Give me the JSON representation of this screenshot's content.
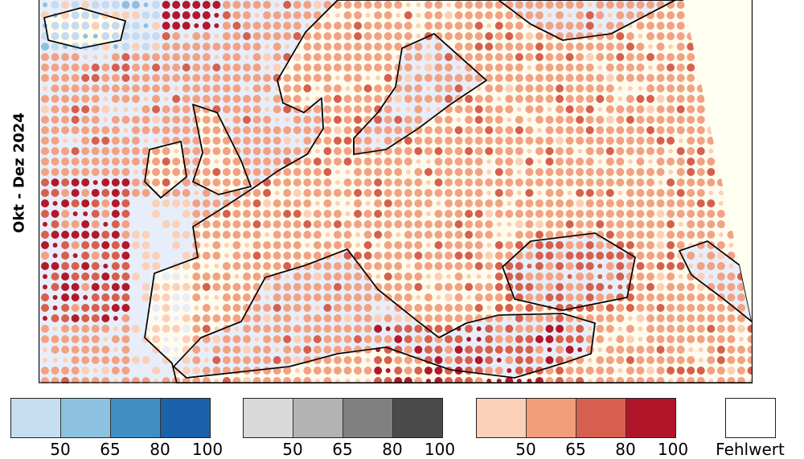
{
  "period_label": "Okt - Dez 2024",
  "map": {
    "colors": {
      "sea": "#e8eef9",
      "land": "#fffcee",
      "outside": "#fffff2",
      "coast": "#000000"
    },
    "dot_palette": {
      "blue_light": "#c6dbef",
      "blue_mid": "#8fbfdf",
      "peach": "#fbd0b9",
      "salmon": "#f2a284",
      "red": "#d6604d",
      "dark_red": "#b2182b"
    }
  },
  "legend": {
    "groups": [
      {
        "colors": [
          "#c6dff0",
          "#8dc1e0",
          "#3f8fc4",
          "#1a62aa"
        ],
        "ticks": [
          "50",
          "65",
          "80",
          "100"
        ]
      },
      {
        "colors": [
          "#d9d9d9",
          "#b3b3b3",
          "#808080",
          "#4a4a4a"
        ],
        "ticks": [
          "50",
          "65",
          "80",
          "100"
        ]
      },
      {
        "colors": [
          "#fbd0b8",
          "#f29e7c",
          "#d6604d",
          "#b2142a"
        ],
        "ticks": [
          "50",
          "65",
          "80",
          "100"
        ]
      }
    ],
    "missing": {
      "label": "Fehlwert",
      "color": "#ffffff"
    }
  }
}
